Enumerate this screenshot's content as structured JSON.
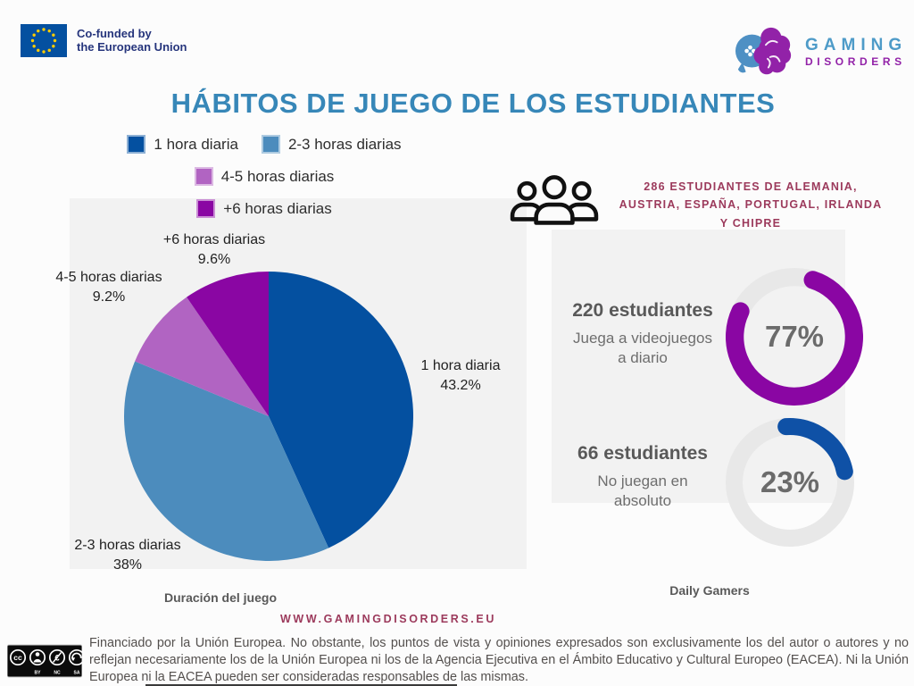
{
  "header": {
    "eu_logo": {
      "line1": "Co-funded by",
      "line2": "the European Union",
      "flag_color": "#0450A0",
      "star_color": "#FFCC00",
      "text_color": "#26357C"
    },
    "brand": {
      "word1": "GAMING",
      "word2": "DISORDERS",
      "word1_color": "#4E9BC8",
      "word2_color": "#9222A8"
    }
  },
  "title": {
    "text": "HÁBITOS DE JUEGO DE LOS ESTUDIANTES",
    "color": "#3787B8"
  },
  "students_heading": {
    "text": "286 ESTUDIANTES DE ALEMANIA, AUSTRIA, ESPAÑA, PORTUGAL, IRLANDA Y CHIPRE",
    "color": "#9C3A5C"
  },
  "chart_data": [
    {
      "id": "duration_pie",
      "type": "pie",
      "title": "Duración del juego",
      "categories": [
        "1 hora diaria",
        "2-3 horas diarias",
        "4-5 horas diarias",
        "+6 horas diarias"
      ],
      "values": [
        43.2,
        38,
        9.2,
        9.6
      ],
      "display_values": [
        "43.2%",
        "38%",
        "9.2%",
        "9.6%"
      ],
      "colors": [
        "#0450A0",
        "#4C8CBD",
        "#B164C2",
        "#8A06A3"
      ],
      "start_angle_deg": 0,
      "direction": "clockwise",
      "legend_position": "top",
      "background": "#F2F2F2"
    },
    {
      "id": "daily_gamers_donut",
      "type": "donut",
      "value": 77,
      "display_value": "77%",
      "color": "#8A06A3",
      "track_color": "#E8E8E8",
      "start_angle_deg": 18,
      "stat_number": "220 estudiantes",
      "stat_caption": "Juega a videojuegos a diario"
    },
    {
      "id": "non_gamers_donut",
      "type": "donut",
      "value": 23,
      "display_value": "23%",
      "color": "#0F51A6",
      "track_color": "#E8E8E8",
      "start_angle_deg": -4,
      "stat_number": "66 estudiantes",
      "stat_caption": "No juegan en absoluto"
    }
  ],
  "captions": {
    "pie": "Duración del juego",
    "stats": "Daily Gamers"
  },
  "footer": {
    "website": "WWW.GAMINGDISORDERS.EU",
    "website_color": "#9C3A5C",
    "license": {
      "cc": "cc",
      "labels": [
        "BY",
        "NC",
        "SA"
      ]
    },
    "disclaimer": "Financiado por la Unión Europea. No obstante, los puntos de vista y opiniones expresados son exclusivamente los del autor o autores y no reflejan necesariamente los de la Unión Europea ni los de la Agencia Ejecutiva en el Ámbito Educativo y Cultural Europeo (EACEA). Ni la Unión Europea ni la EACEA pueden ser consideradas responsables de las mismas."
  }
}
